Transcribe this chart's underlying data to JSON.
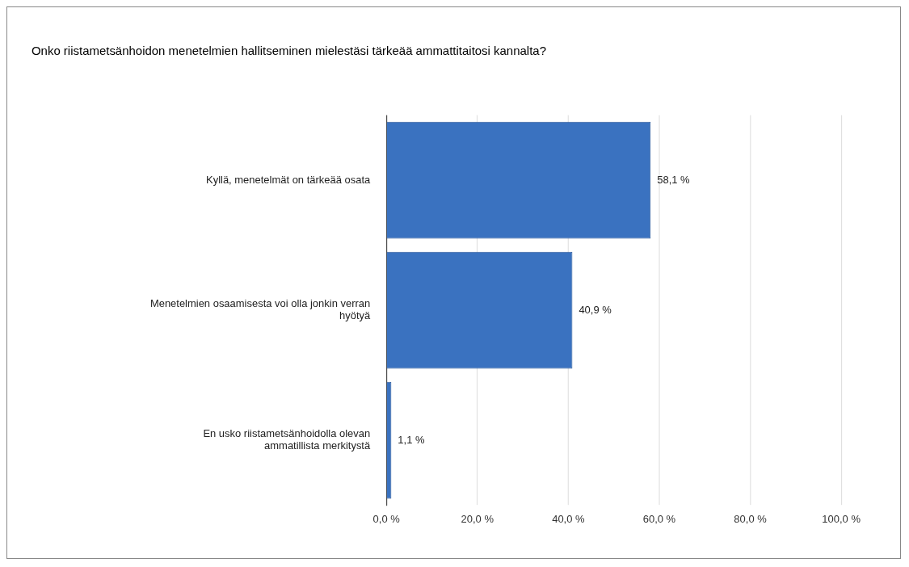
{
  "chart_data": {
    "type": "bar",
    "orientation": "horizontal",
    "title": "Onko riistametsänhoidon menetelmien hallitseminen mielestäsi tärkeää ammattitaitosi kannalta?",
    "categories": [
      "Kyllä, menetelmät on tärkeää osata",
      "Menetelmien osaamisesta voi olla jonkin verran hyötyä",
      "En usko riistametsänhoidolla olevan ammatillista merkitystä"
    ],
    "values": [
      58.1,
      40.9,
      1.1
    ],
    "value_labels": [
      "58,1 %",
      "40,9 %",
      "1,1 %"
    ],
    "color": "#3a72c0",
    "xlim": [
      0,
      100
    ],
    "xticks": [
      {
        "value": 0,
        "label": "0,0 %"
      },
      {
        "value": 20,
        "label": "20,0 %"
      },
      {
        "value": 40,
        "label": "40,0 %"
      },
      {
        "value": 60,
        "label": "60,0 %"
      },
      {
        "value": 80,
        "label": "80,0 %"
      },
      {
        "value": 100,
        "label": "100,0 %"
      }
    ],
    "grid": "x",
    "legend": false
  }
}
